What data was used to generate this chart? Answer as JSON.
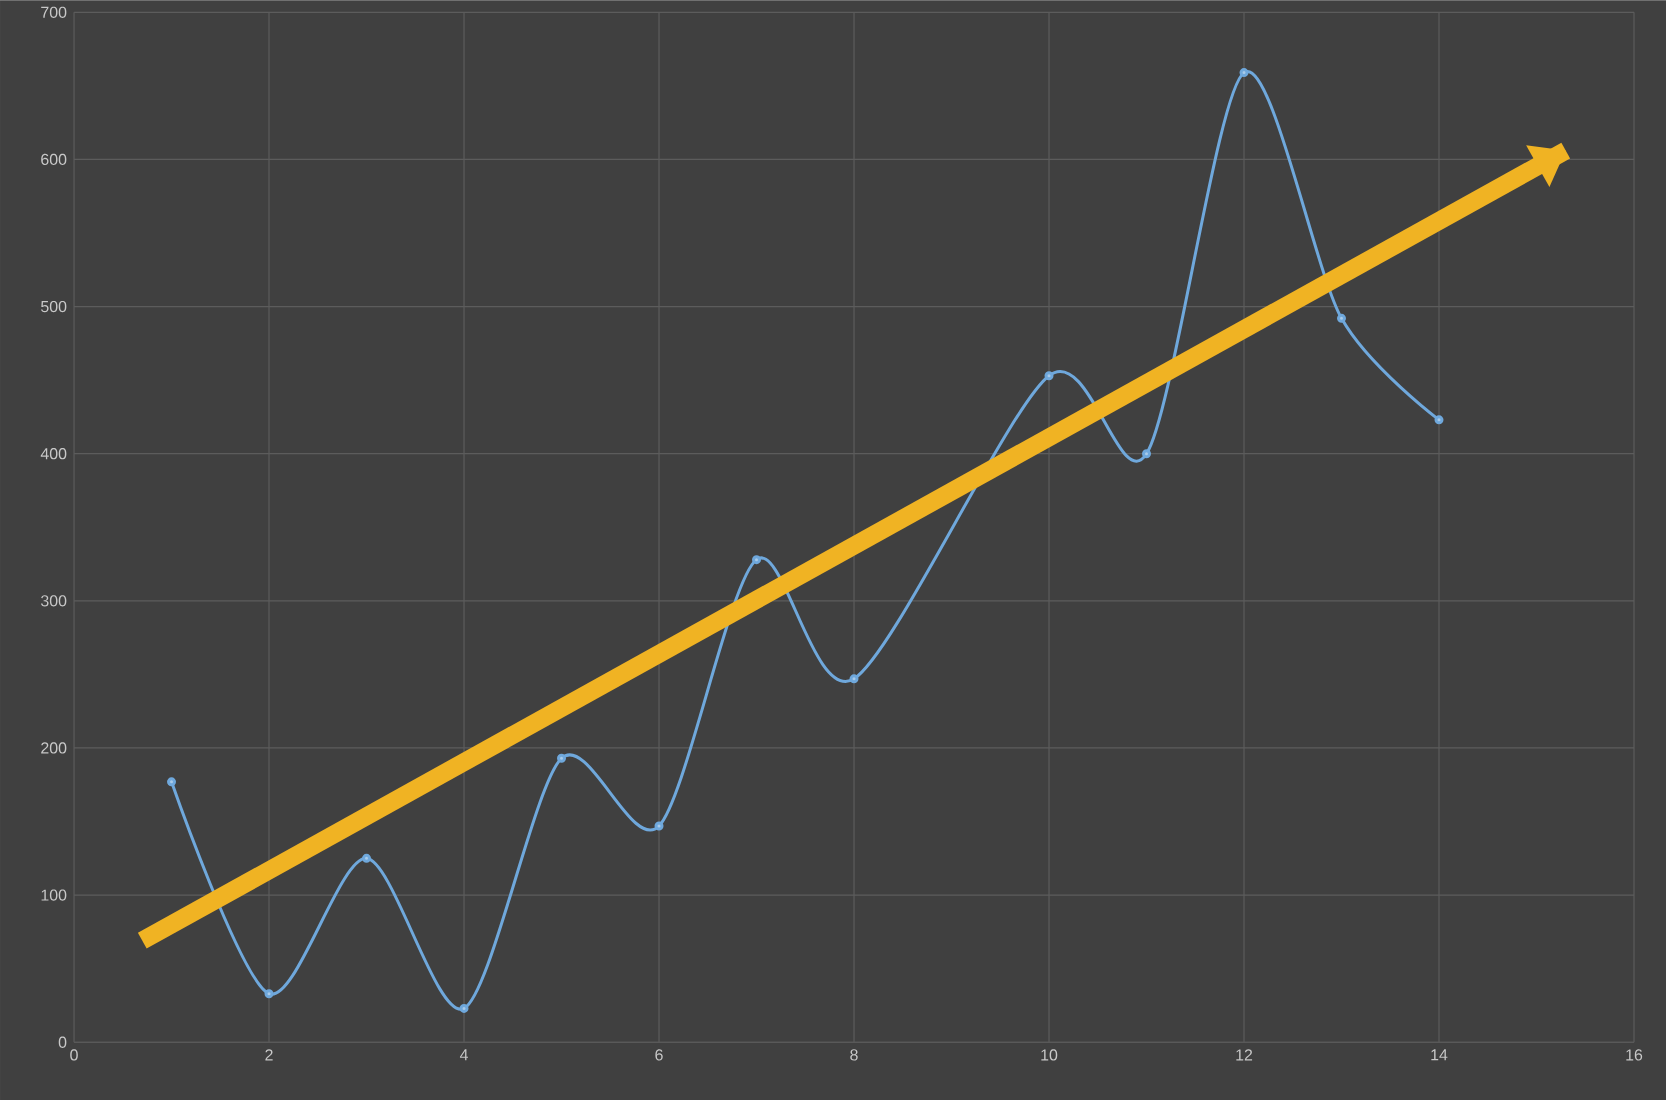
{
  "chart_data": {
    "type": "line",
    "x": [
      1,
      2,
      3,
      4,
      5,
      6,
      7,
      8,
      10,
      11,
      12,
      13,
      14
    ],
    "series": [
      {
        "color": "#6fa8dc",
        "values": [
          177,
          33,
          125,
          23,
          193,
          147,
          328,
          247,
          453,
          400,
          659,
          492,
          423
        ]
      },
      {
        "type": "line",
        "color": "#f0b323",
        "x": [
          0.7,
          15.3
        ],
        "values": [
          69,
          606
        ],
        "marker": "none"
      }
    ],
    "xlim": [
      0,
      16
    ],
    "ylim": [
      0,
      700
    ],
    "xticks": [
      0,
      2,
      4,
      6,
      8,
      10,
      12,
      14,
      16
    ],
    "yticks": [
      0,
      100,
      200,
      300,
      400,
      500,
      600,
      700
    ],
    "grid": true,
    "marker": "circle",
    "line_style": "solid"
  }
}
